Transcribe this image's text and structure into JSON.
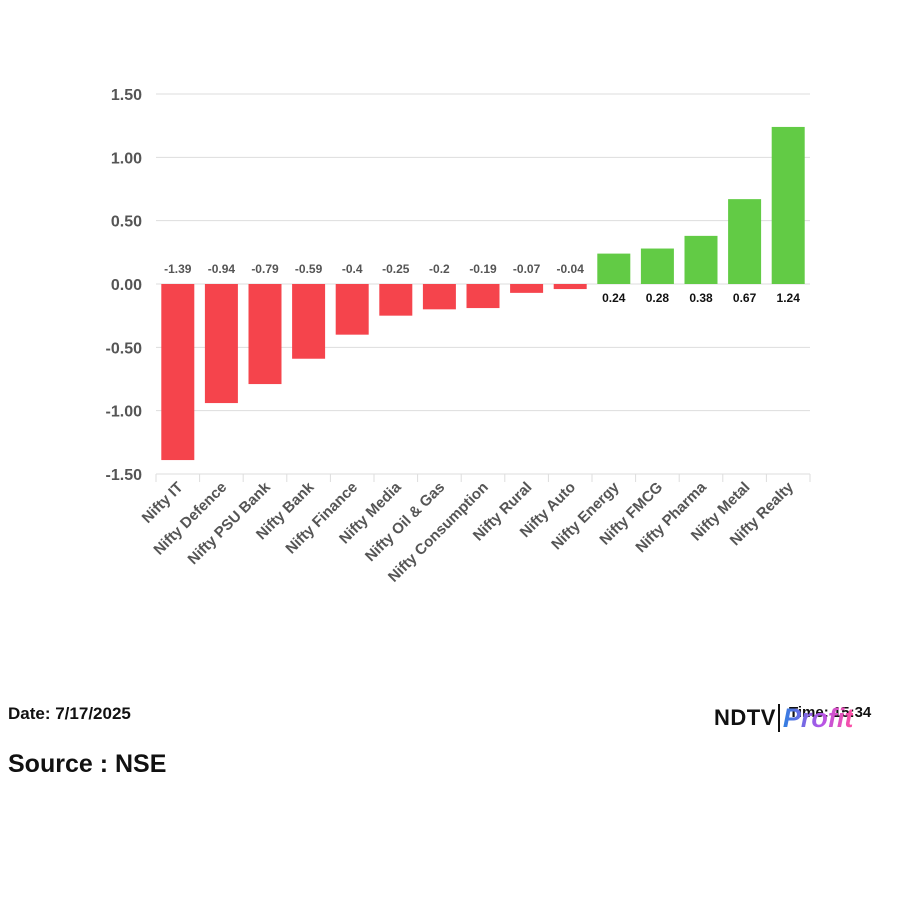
{
  "chart_data": {
    "type": "bar",
    "categories": [
      "Nifty IT",
      "Nifty Defence",
      "Nifty PSU Bank",
      "Nifty Bank",
      "Nifty Finance",
      "Nifty Media",
      "Nifty Oil & Gas",
      "Nifty Consumption",
      "Nifty Rural",
      "Nifty Auto",
      "Nifty Energy",
      "Nifty FMCG",
      "Nifty Pharma",
      "Nifty Metal",
      "Nifty Realty"
    ],
    "values": [
      -1.39,
      -0.94,
      -0.79,
      -0.59,
      -0.4,
      -0.25,
      -0.2,
      -0.19,
      -0.07,
      -0.04,
      0.24,
      0.28,
      0.38,
      0.67,
      1.24
    ],
    "data_labels": [
      "-1.39",
      "-0.94",
      "-0.79",
      "-0.59",
      "-0.4",
      "-0.25",
      "-0.2",
      "-0.19",
      "-0.07",
      "-0.04",
      "0.24",
      "0.28",
      "0.38",
      "0.67",
      "1.24"
    ],
    "yticks": [
      1.5,
      1.0,
      0.5,
      0.0,
      -0.5,
      -1.0,
      -1.5
    ],
    "ytick_labels": [
      "1.50",
      "1.00",
      "0.50",
      "0.00",
      "-0.50",
      "-1.00",
      "-1.50"
    ],
    "ylim": [
      -1.5,
      1.5
    ],
    "grid": true,
    "colors": {
      "negative": "#f5444c",
      "positive": "#62cb45",
      "grid": "#dddddd",
      "negative_label": "#555555",
      "positive_label": "#111111"
    }
  },
  "footer": {
    "date": "Date: 7/17/2025",
    "source": "Source : NSE",
    "time": "Time: 15:34",
    "brand_ndtv": "NDTV",
    "brand_profit": "Profit"
  }
}
